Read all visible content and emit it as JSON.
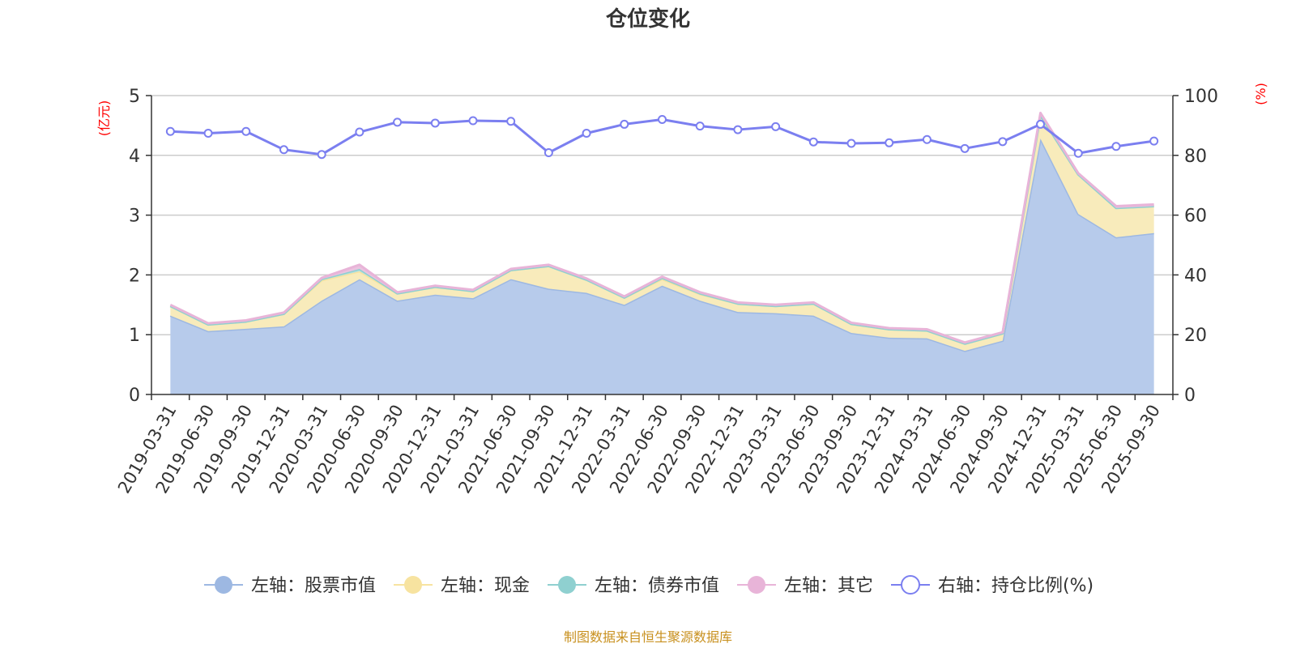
{
  "chart_data": {
    "type": "area",
    "title": "仓位变化",
    "left_axis_unit": "(亿元)",
    "right_axis_unit": "(%)",
    "left_ylim": [
      0,
      5
    ],
    "left_yticks": [
      "0",
      "1",
      "2",
      "3",
      "4",
      "5"
    ],
    "right_ylim": [
      0,
      100
    ],
    "right_yticks": [
      "0",
      "20",
      "40",
      "60",
      "80",
      "100"
    ],
    "grid": true,
    "legend_position": "bottom",
    "categories": [
      "2019-03-31",
      "2019-06-30",
      "2019-09-30",
      "2019-12-31",
      "2020-03-31",
      "2020-06-30",
      "2020-09-30",
      "2020-12-31",
      "2021-03-31",
      "2021-06-30",
      "2021-09-30",
      "2021-12-31",
      "2022-03-31",
      "2022-06-30",
      "2022-09-30",
      "2022-12-31",
      "2023-03-31",
      "2023-06-30",
      "2023-09-30",
      "2023-12-31",
      "2024-03-31",
      "2024-06-30",
      "2024-09-30",
      "2024-12-31",
      "2025-03-31",
      "2025-06-30",
      "2025-09-30"
    ],
    "series": [
      {
        "name": "左轴：股票市值",
        "axis": "left",
        "stack": true,
        "color": "#9db8e2",
        "fill": "#b7cbeb",
        "values": [
          1.32,
          1.06,
          1.1,
          1.14,
          1.57,
          1.93,
          1.57,
          1.67,
          1.61,
          1.93,
          1.77,
          1.7,
          1.5,
          1.82,
          1.57,
          1.38,
          1.36,
          1.32,
          1.03,
          0.95,
          0.94,
          0.73,
          0.9,
          4.28,
          3.02,
          2.63,
          2.7
        ]
      },
      {
        "name": "左轴：现金",
        "axis": "left",
        "stack": true,
        "color": "#f7e3a0",
        "fill": "#f8ebbb",
        "values": [
          0.16,
          0.11,
          0.12,
          0.21,
          0.34,
          0.13,
          0.12,
          0.13,
          0.12,
          0.15,
          0.38,
          0.22,
          0.12,
          0.11,
          0.11,
          0.14,
          0.12,
          0.2,
          0.15,
          0.14,
          0.13,
          0.12,
          0.12,
          0.39,
          0.66,
          0.49,
          0.45
        ]
      },
      {
        "name": "左轴：债券市值",
        "axis": "left",
        "stack": true,
        "color": "#8fd0d0",
        "fill": "#b6e0e0",
        "values": [
          0,
          0,
          0,
          0,
          0.02,
          0.04,
          0,
          0,
          0,
          0,
          0,
          0,
          0,
          0.02,
          0.01,
          0,
          0,
          0,
          0,
          0,
          0,
          0,
          0,
          0,
          0,
          0,
          0
        ]
      },
      {
        "name": "左轴：其它",
        "axis": "left",
        "stack": true,
        "color": "#e8b4d8",
        "fill": "#eac3df",
        "values": [
          0.02,
          0.02,
          0.02,
          0.02,
          0.02,
          0.07,
          0.02,
          0.02,
          0.02,
          0.02,
          0.02,
          0.02,
          0.02,
          0.02,
          0.02,
          0.02,
          0.02,
          0.02,
          0.02,
          0.02,
          0.02,
          0.02,
          0.02,
          0.04,
          0.02,
          0.03,
          0.03
        ]
      },
      {
        "name": "右轴：持仓比例(%)",
        "axis": "right",
        "stack": false,
        "color": "#7b7ff0",
        "values": [
          88.0,
          87.4,
          88.0,
          81.9,
          80.3,
          87.8,
          91.1,
          90.8,
          91.6,
          91.4,
          80.9,
          87.4,
          90.4,
          92.0,
          89.8,
          88.6,
          89.6,
          84.5,
          84.0,
          84.2,
          85.3,
          82.3,
          84.6,
          90.4,
          80.7,
          83.0,
          84.8
        ]
      }
    ],
    "source": "制图数据来自恒生聚源数据库"
  }
}
